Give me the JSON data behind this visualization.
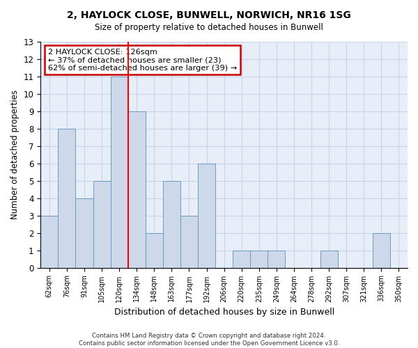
{
  "title": "2, HAYLOCK CLOSE, BUNWELL, NORWICH, NR16 1SG",
  "subtitle": "Size of property relative to detached houses in Bunwell",
  "xlabel": "Distribution of detached houses by size in Bunwell",
  "ylabel": "Number of detached properties",
  "categories": [
    "62sqm",
    "76sqm",
    "91sqm",
    "105sqm",
    "120sqm",
    "134sqm",
    "148sqm",
    "163sqm",
    "177sqm",
    "192sqm",
    "206sqm",
    "220sqm",
    "235sqm",
    "249sqm",
    "264sqm",
    "278sqm",
    "292sqm",
    "307sqm",
    "321sqm",
    "336sqm",
    "350sqm"
  ],
  "values": [
    3,
    8,
    4,
    5,
    11,
    9,
    2,
    5,
    3,
    6,
    0,
    1,
    1,
    1,
    0,
    0,
    1,
    0,
    0,
    2,
    0
  ],
  "bar_color": "#cdd9ea",
  "bar_edge_color": "#6a9bbf",
  "red_line_after_index": 4,
  "bar_width": 1.0,
  "ylim": [
    0,
    13
  ],
  "yticks": [
    0,
    1,
    2,
    3,
    4,
    5,
    6,
    7,
    8,
    9,
    10,
    11,
    12,
    13
  ],
  "annotation_text": "2 HAYLOCK CLOSE: 126sqm\n← 37% of detached houses are smaller (23)\n62% of semi-detached houses are larger (39) →",
  "annotation_box_color": "#ffffff",
  "annotation_box_edge": "#cc0000",
  "footer1": "Contains HM Land Registry data © Crown copyright and database right 2024.",
  "footer2": "Contains public sector information licensed under the Open Government Licence v3.0.",
  "grid_color": "#c8d4e8",
  "background_color": "#e8eef8",
  "title_fontsize": 10,
  "subtitle_fontsize": 9
}
